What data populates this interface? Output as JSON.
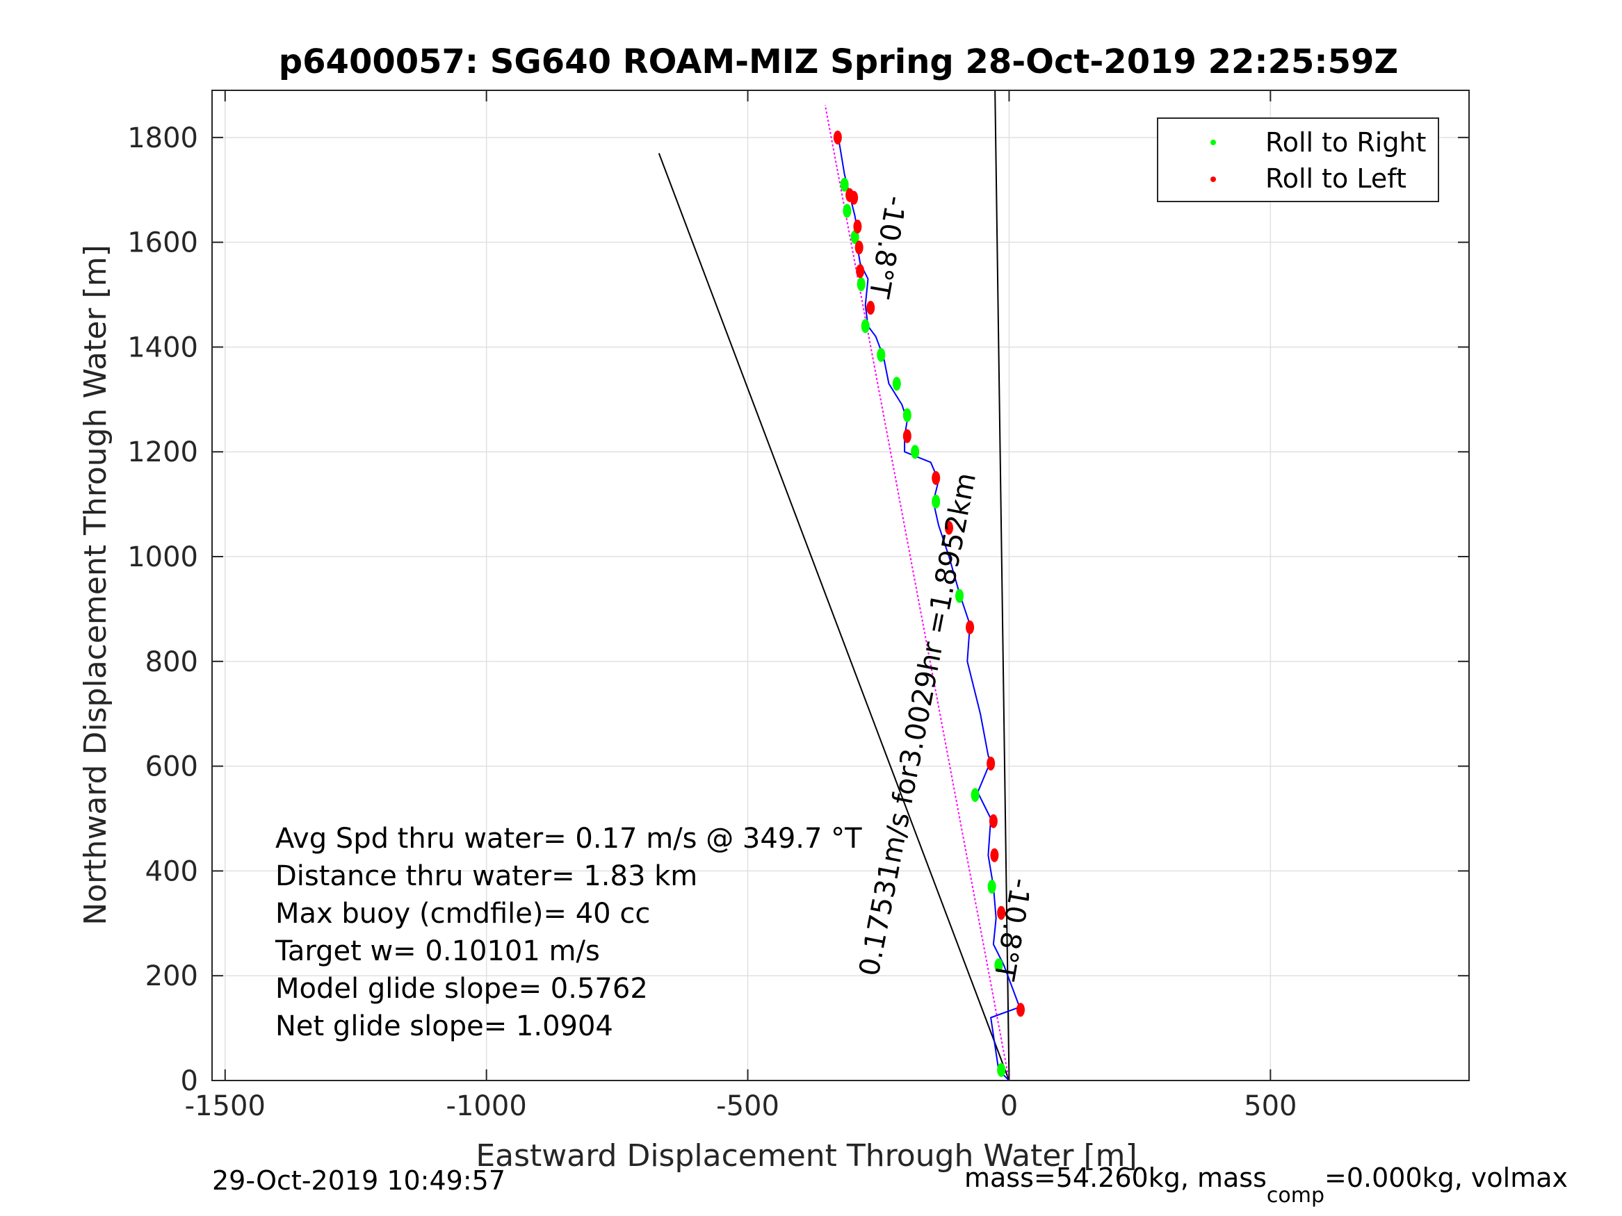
{
  "title": "p6400057: SG640 ROAM-MIZ Spring 28-Oct-2019 22:25:59Z",
  "footer_left": "29-Oct-2019 10:49:57",
  "footer_right": {
    "part1": "mass=54.260kg, mass",
    "subscript": "comp",
    "part2": "=0.000kg, volmax"
  },
  "chart_data": {
    "type": "line",
    "title": "p6400057: SG640 ROAM-MIZ Spring 28-Oct-2019 22:25:59Z",
    "xlabel": "Eastward Displacement Through Water [m]",
    "ylabel": "Northward Displacement Through Water [m]",
    "xlim": [
      -1525,
      880
    ],
    "ylim": [
      0,
      1890
    ],
    "xticks": [
      -1500,
      -1000,
      -500,
      0,
      500
    ],
    "xtick_labels": [
      "-1500",
      "-1000",
      "-500",
      "0",
      "500"
    ],
    "yticks": [
      0,
      200,
      400,
      600,
      800,
      1000,
      1200,
      1400,
      1600,
      1800
    ],
    "ytick_labels": [
      "0",
      "200",
      "400",
      "600",
      "800",
      "1000",
      "1200",
      "1400",
      "1600",
      "1800"
    ],
    "grid": true,
    "legend": {
      "placement": "top-right",
      "entries": [
        {
          "label": "Roll to Right",
          "color": "#00ff00"
        },
        {
          "label": "Roll to Left",
          "color": "#ff0000"
        }
      ]
    },
    "colors": {
      "track": "#0000ff",
      "net_line": "#ff00ff",
      "reference_lines": "#000000",
      "grid": "#e0e0e0"
    },
    "track": {
      "x": [
        0,
        -20,
        -35,
        20,
        -10,
        -30,
        -25,
        -30,
        -40,
        -35,
        -60,
        -35,
        -40,
        -55,
        -80,
        -75,
        -95,
        -115,
        -135,
        -145,
        -135,
        -150,
        -175,
        -200,
        -200,
        -195,
        -205,
        -230,
        -240,
        -255,
        -270,
        -275,
        -270,
        -285,
        -290,
        -290,
        -295,
        -305,
        -310,
        -315,
        -320,
        -325,
        -325,
        -327
      ],
      "y": [
        0,
        20,
        120,
        140,
        220,
        260,
        310,
        370,
        430,
        500,
        550,
        610,
        620,
        700,
        800,
        870,
        930,
        1000,
        1060,
        1105,
        1145,
        1180,
        1190,
        1200,
        1230,
        1260,
        1290,
        1330,
        1380,
        1420,
        1440,
        1480,
        1530,
        1560,
        1590,
        1620,
        1650,
        1690,
        1710,
        1730,
        1760,
        1790,
        1800,
        1810
      ]
    },
    "roll_to_right": {
      "x": [
        -15,
        -20,
        -33,
        -65,
        -95,
        -140,
        -180,
        -195,
        -215,
        -245,
        -275,
        -283,
        -295,
        -310,
        -315
      ],
      "y": [
        20,
        220,
        370,
        545,
        925,
        1105,
        1200,
        1270,
        1330,
        1385,
        1440,
        1520,
        1610,
        1660,
        1710
      ]
    },
    "roll_to_left": {
      "x": [
        22,
        -15,
        -28,
        -30,
        -35,
        -75,
        -115,
        -140,
        -195,
        -265,
        -285,
        -287,
        -290,
        -297,
        -305,
        -328
      ],
      "y": [
        135,
        320,
        430,
        495,
        605,
        865,
        1055,
        1150,
        1230,
        1475,
        1545,
        1590,
        1630,
        1685,
        1690,
        1800
      ]
    },
    "net_line": {
      "x": [
        0,
        -352
      ],
      "y": [
        0,
        1862
      ]
    },
    "reference_lines": [
      {
        "x": [
          0,
          -670
        ],
        "y": [
          0,
          1770
        ]
      },
      {
        "x": [
          0,
          -27
        ],
        "y": [
          0,
          1890
        ]
      }
    ],
    "annotations": {
      "heading_top": "-10.8°T",
      "heading_bottom": "-10.8°T",
      "speed_line": "0.17531m/s for3.0029hr =1.8952km"
    },
    "stats": [
      "Avg Spd thru water=  0.17 m/s @ 349.7 °T",
      "Distance thru water=  1.83 km",
      "Max buoy (cmdfile)= 40 cc",
      "Target w= 0.10101 m/s",
      "Model glide slope= 0.5762",
      "Net glide slope= 1.0904"
    ]
  }
}
